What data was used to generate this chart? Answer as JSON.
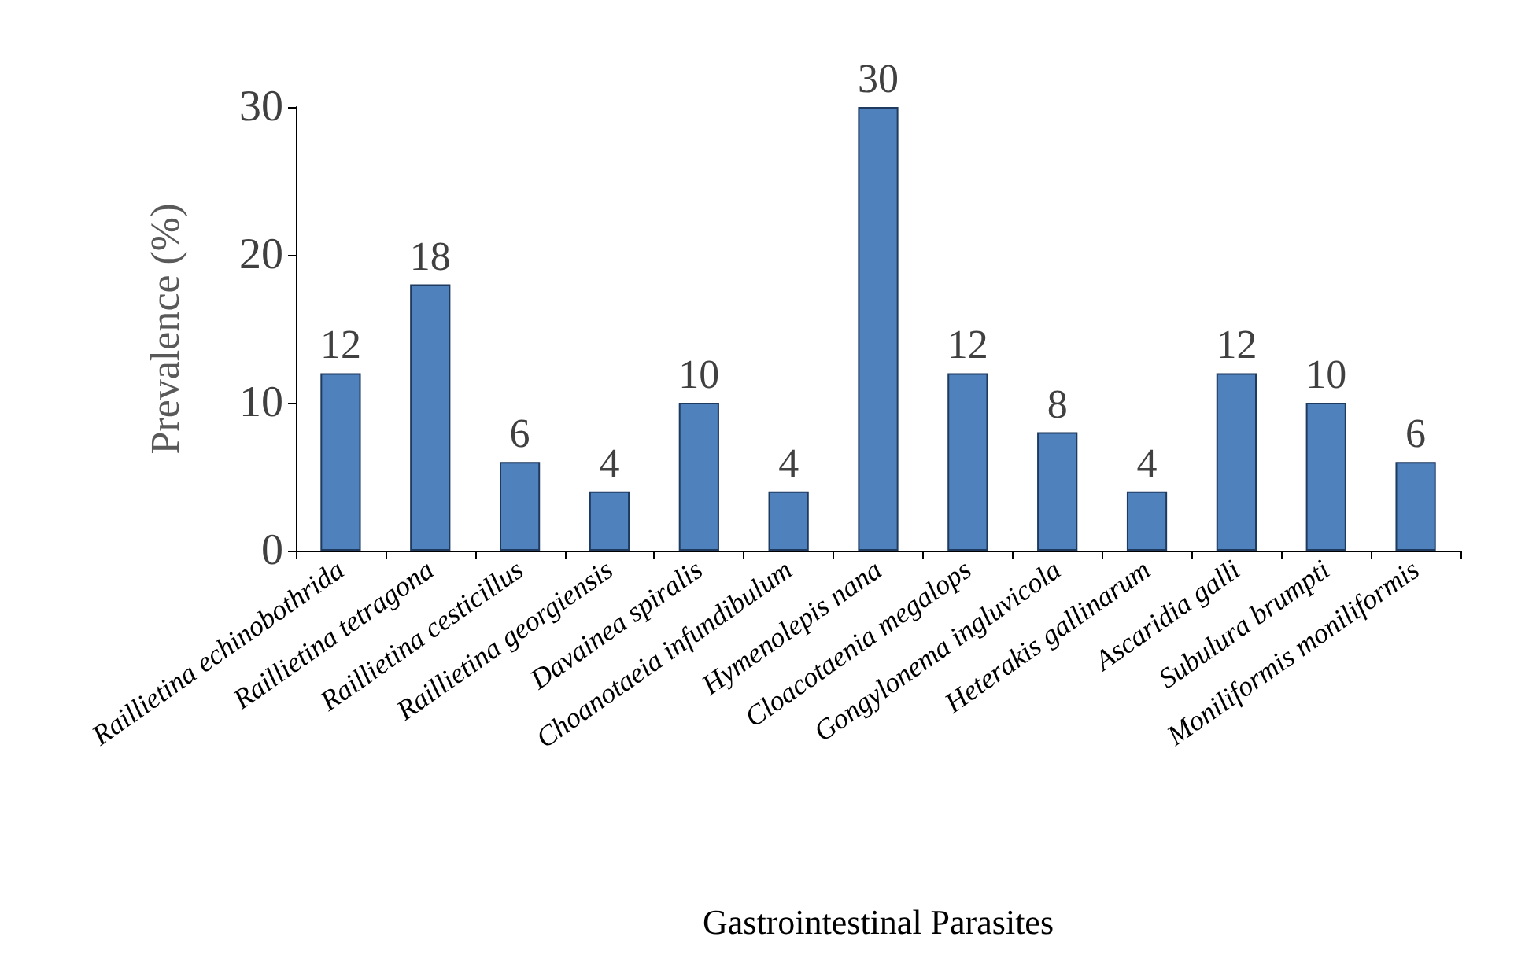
{
  "chart_data": {
    "type": "bar",
    "xlabel": "Gastrointestinal Parasites",
    "ylabel": "Prevalence (%)",
    "categories": [
      "Raillietina echinobothrida",
      "Raillietina tetragona",
      "Raillietina cesticillus",
      "Raillietina georgiensis",
      "Davainea spiralis",
      "Choanotaeia infundibulum",
      "Hymenolepis nana",
      "Cloacotaenia megalops",
      "Gongylonema ingluvicola",
      "Heterakis gallinarum",
      "Ascaridia galli",
      "Subulura brumpti",
      "Moniliformis moniliformis"
    ],
    "values": [
      12,
      18,
      6,
      4,
      10,
      4,
      30,
      12,
      8,
      4,
      12,
      10,
      6
    ],
    "color": "#4f81bd",
    "ylim": [
      0,
      30
    ],
    "yticks": [
      0,
      10,
      20,
      30
    ],
    "data_labels": true
  }
}
